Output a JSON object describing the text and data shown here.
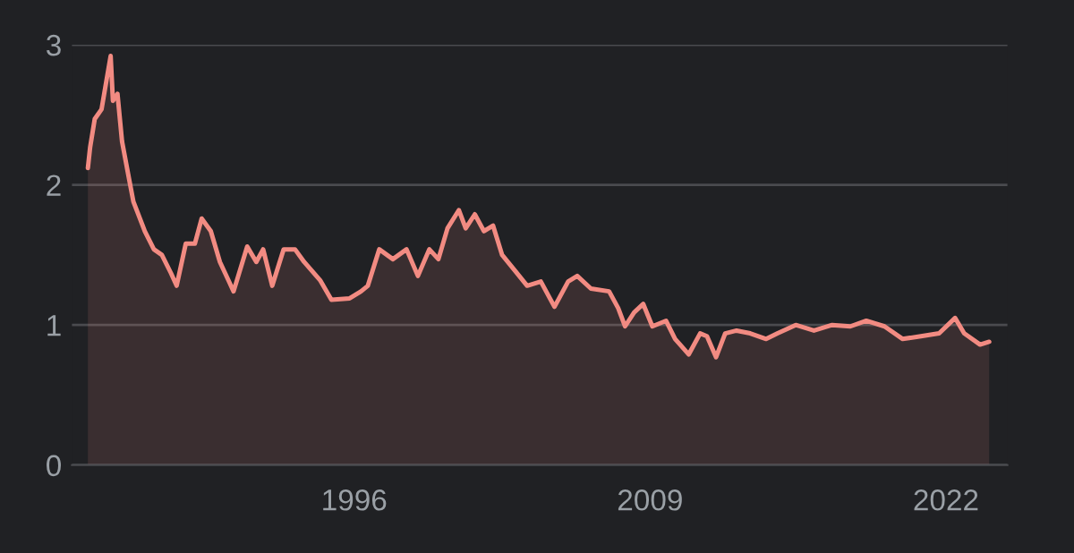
{
  "chart_data": {
    "type": "area",
    "x": [
      1984.3,
      1984.4,
      1984.6,
      1984.9,
      1985.1,
      1985.3,
      1985.4,
      1985.6,
      1985.8,
      1986.1,
      1986.3,
      1986.8,
      1987.2,
      1987.55,
      1987.95,
      1988.2,
      1988.6,
      1989.0,
      1989.3,
      1989.7,
      1990.1,
      1990.7,
      1991.3,
      1991.7,
      1992.0,
      1992.4,
      1992.9,
      1993.4,
      1993.8,
      1994.5,
      1995.0,
      1995.8,
      1996.3,
      1996.6,
      1997.1,
      1997.7,
      1998.3,
      1998.8,
      1999.3,
      1999.7,
      2000.1,
      2000.6,
      2000.9,
      2001.3,
      2001.7,
      2002.1,
      2002.5,
      2003.1,
      2003.6,
      2004.2,
      2004.8,
      2005.4,
      2005.8,
      2006.4,
      2007.2,
      2007.6,
      2007.9,
      2008.3,
      2008.7,
      2009.1,
      2009.7,
      2010.1,
      2010.7,
      2011.2,
      2011.5,
      2011.9,
      2012.3,
      2012.8,
      2013.4,
      2014.1,
      2014.6,
      2015.4,
      2016.2,
      2017.0,
      2017.8,
      2018.5,
      2019.3,
      2020.1,
      2020.9,
      2021.7,
      2022.4,
      2022.8,
      2023.5,
      2023.9
    ],
    "series": [
      {
        "color": "#f28b82",
        "values": [
          2.12,
          2.27,
          2.47,
          2.54,
          2.73,
          2.92,
          2.6,
          2.65,
          2.31,
          2.05,
          1.88,
          1.67,
          1.54,
          1.5,
          1.37,
          1.28,
          1.58,
          1.58,
          1.76,
          1.67,
          1.45,
          1.24,
          1.56,
          1.45,
          1.54,
          1.28,
          1.54,
          1.54,
          1.45,
          1.32,
          1.18,
          1.19,
          1.24,
          1.28,
          1.54,
          1.47,
          1.54,
          1.35,
          1.54,
          1.47,
          1.69,
          1.82,
          1.69,
          1.79,
          1.67,
          1.71,
          1.5,
          1.38,
          1.28,
          1.31,
          1.13,
          1.31,
          1.35,
          1.26,
          1.24,
          1.12,
          0.99,
          1.09,
          1.15,
          0.99,
          1.03,
          0.9,
          0.79,
          0.94,
          0.92,
          0.77,
          0.94,
          0.96,
          0.94,
          0.9,
          0.94,
          1.0,
          0.96,
          1.0,
          0.99,
          1.03,
          0.99,
          0.9,
          0.92,
          0.94,
          1.05,
          0.94,
          0.86,
          0.88
        ]
      }
    ],
    "xlim": [
      1983.6,
      2024.7
    ],
    "ylim": [
      0,
      3
    ],
    "xticks": [
      1996,
      2009,
      2022
    ],
    "yticks": [
      0,
      1,
      2,
      3
    ],
    "grid": "y",
    "legend": false
  }
}
